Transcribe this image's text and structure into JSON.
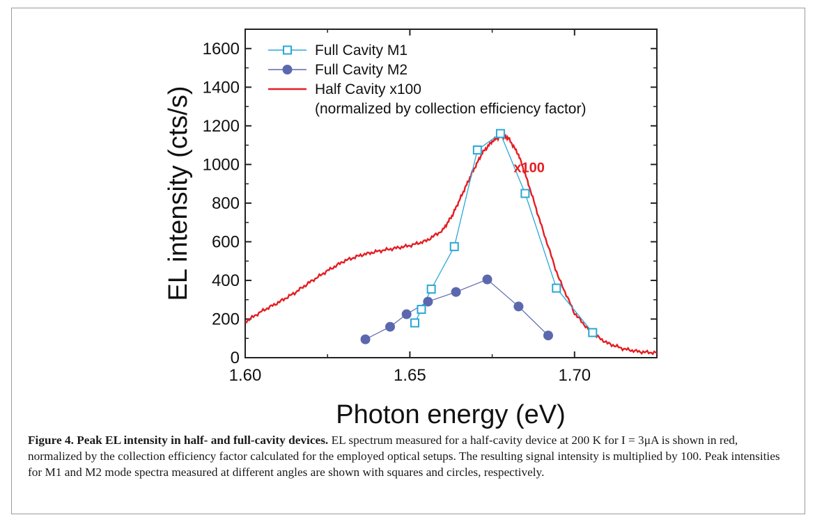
{
  "chart_data": {
    "type": "line",
    "xlabel": "Photon energy (eV)",
    "ylabel": "EL intensity (cts/s)",
    "xlim": [
      1.6,
      1.725
    ],
    "ylim": [
      0,
      1700
    ],
    "xticks": [
      1.6,
      1.65,
      1.7
    ],
    "xtick_labels": [
      "1.60",
      "1.65",
      "1.70"
    ],
    "yticks": [
      0,
      200,
      400,
      600,
      800,
      1000,
      1200,
      1400,
      1600
    ],
    "ytick_labels": [
      "0",
      "200",
      "400",
      "600",
      "800",
      "1000",
      "1200",
      "1400",
      "1600"
    ],
    "grid": false,
    "legend_position": "top-left",
    "legend_note": "(normalized by collection efficiency factor)",
    "annotation": {
      "text": "x100",
      "x": 1.6815,
      "y": 960
    },
    "series": [
      {
        "name": "Full Cavity M1",
        "marker": "square-open",
        "color": "#2aa7d6",
        "x": [
          1.6515,
          1.6535,
          1.6565,
          1.6635,
          1.6705,
          1.6775,
          1.685,
          1.6945,
          1.7055
        ],
        "y": [
          180,
          250,
          355,
          575,
          1075,
          1160,
          850,
          360,
          130
        ]
      },
      {
        "name": "Full Cavity M2",
        "marker": "circle-filled",
        "color": "#5b68ad",
        "x": [
          1.6365,
          1.644,
          1.649,
          1.6555,
          1.664,
          1.6735,
          1.683,
          1.692
        ],
        "y": [
          95,
          160,
          225,
          290,
          340,
          405,
          265,
          115
        ]
      },
      {
        "name": "Half Cavity x100",
        "marker": "none",
        "color": "#e31e24",
        "x": [
          1.6,
          1.605,
          1.61,
          1.615,
          1.62,
          1.625,
          1.63,
          1.635,
          1.64,
          1.645,
          1.65,
          1.655,
          1.66,
          1.663,
          1.666,
          1.669,
          1.672,
          1.675,
          1.678,
          1.68,
          1.683,
          1.686,
          1.69,
          1.695,
          1.7,
          1.705,
          1.71,
          1.715,
          1.72,
          1.725
        ],
        "y": [
          185,
          240,
          285,
          335,
          395,
          450,
          500,
          530,
          550,
          565,
          580,
          605,
          660,
          740,
          850,
          960,
          1060,
          1120,
          1150,
          1135,
          1050,
          900,
          680,
          420,
          230,
          130,
          75,
          45,
          30,
          25
        ]
      }
    ]
  },
  "caption": {
    "bold": "Figure 4. Peak EL intensity in half- and full-cavity devices.",
    "text": " EL spectrum measured for a half-cavity device at 200 K for I = 3μA is shown in red, normalized by the collection efficiency factor calculated for the employed optical setups. The resulting signal intensity is multiplied by 100. Peak intensities for M1 and M2 mode spectra measured at different angles are shown with squares and circles, respectively."
  }
}
